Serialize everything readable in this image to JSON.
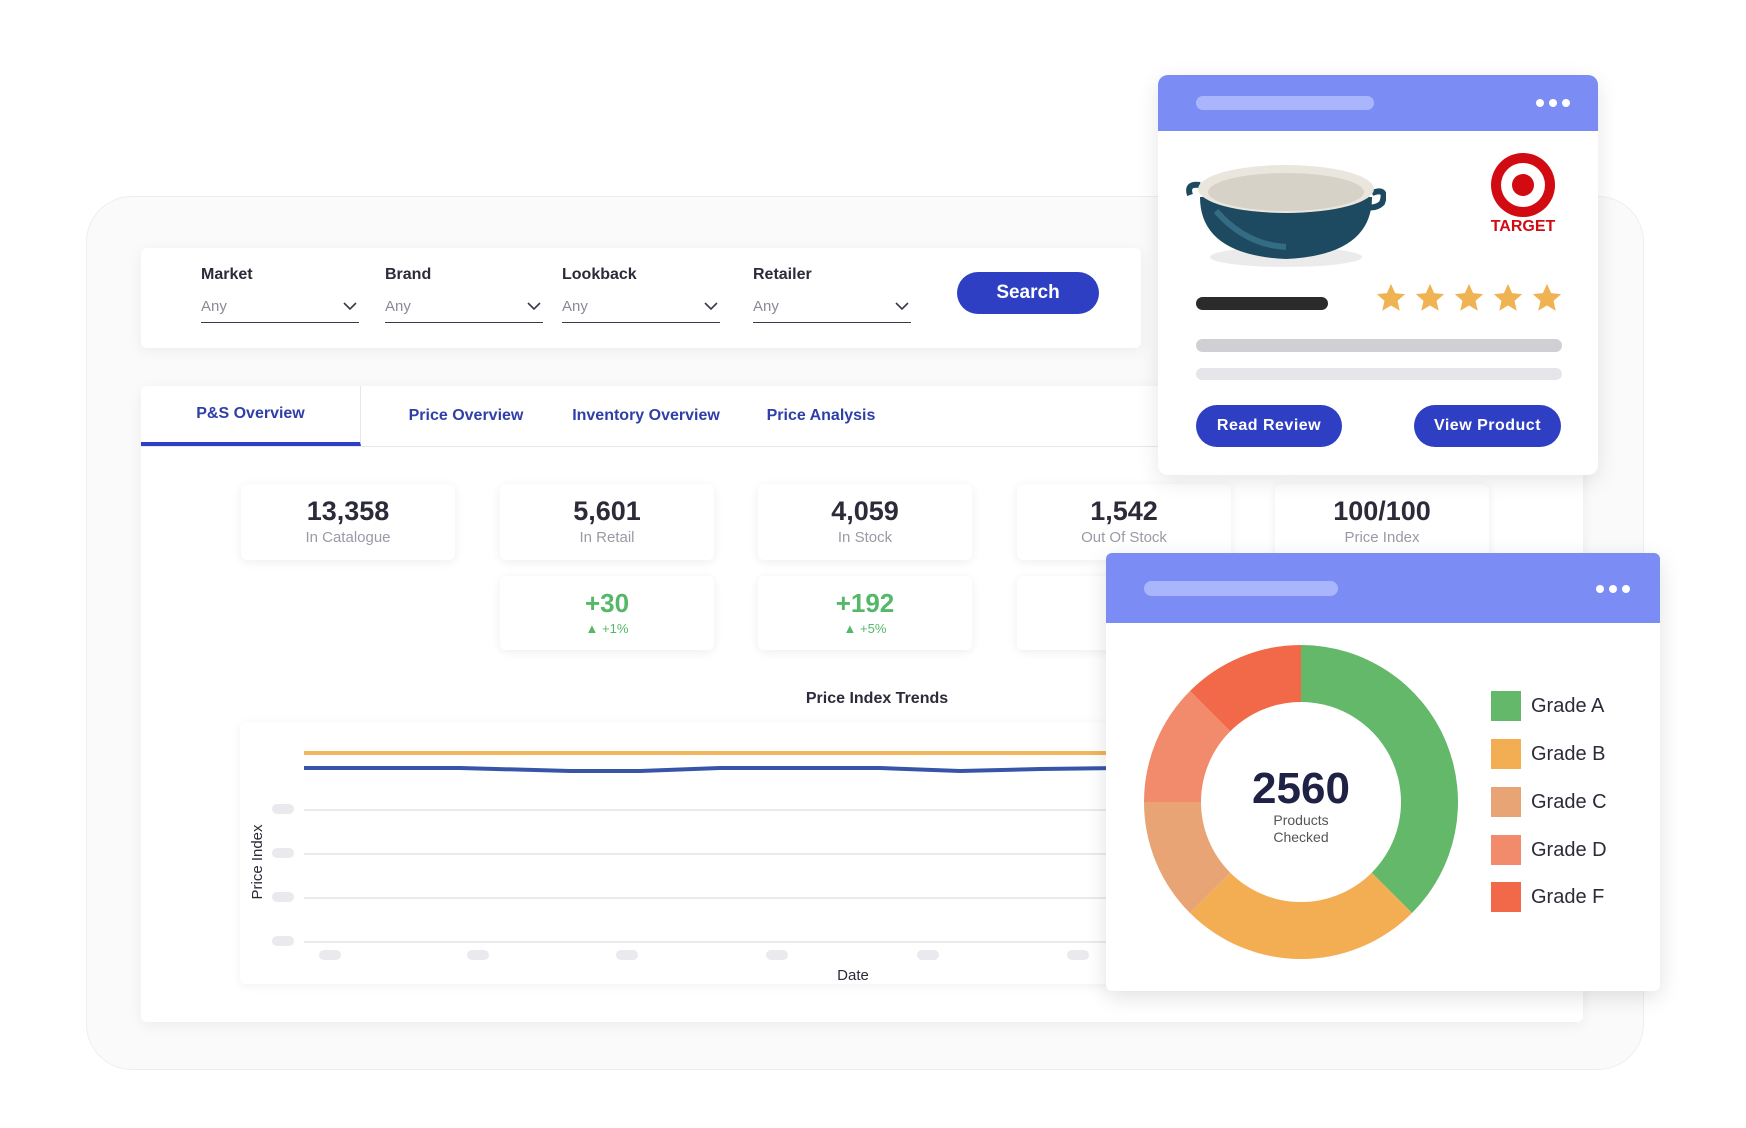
{
  "filters": [
    {
      "label": "Market",
      "value": "Any"
    },
    {
      "label": "Brand",
      "value": "Any"
    },
    {
      "label": "Lookback",
      "value": "Any"
    },
    {
      "label": "Retailer",
      "value": "Any"
    }
  ],
  "search_label": "Search",
  "tabs": [
    {
      "label": "P&S Overview"
    },
    {
      "label": "Price Overview"
    },
    {
      "label": "Inventory Overview"
    },
    {
      "label": "Price Analysis"
    }
  ],
  "stats": [
    {
      "value": "13,358",
      "label": "In Catalogue"
    },
    {
      "value": "5,601",
      "label": "In Retail"
    },
    {
      "value": "4,059",
      "label": "In Stock"
    },
    {
      "value": "1,542",
      "label": "Out Of Stock"
    },
    {
      "value": "100/100",
      "label": "Price Index"
    }
  ],
  "deltas": [
    {
      "value": "+30",
      "pct": "+1%"
    },
    {
      "value": "+192",
      "pct": "+5%"
    }
  ],
  "trend_chart": {
    "title": "Price Index Trends",
    "xlabel": "Date",
    "ylabel": "Price Index",
    "colors": {
      "target": "#f2b45c",
      "actual": "#3755a8"
    }
  },
  "product_card": {
    "retailer": "TARGET",
    "rating": 5,
    "read_review_label": "Read Review",
    "view_product_label": "View Product"
  },
  "chart_data": {
    "type": "pie",
    "center_value": "2560",
    "center_label_line1": "Products",
    "center_label_line2": "Checked",
    "slices": [
      {
        "label": "Grade A",
        "value": 37.5,
        "color": "#63b86a"
      },
      {
        "label": "Grade B",
        "value": 25,
        "color": "#f3ae54"
      },
      {
        "label": "Grade C",
        "value": 12.5,
        "color": "#e8a474"
      },
      {
        "label": "Grade D",
        "value": 12.5,
        "color": "#f28a6c"
      },
      {
        "label": "Grade F",
        "value": 12.5,
        "color": "#f2694a"
      }
    ],
    "legend": [
      "Grade A",
      "Grade B",
      "Grade C",
      "Grade D",
      "Grade F"
    ]
  }
}
